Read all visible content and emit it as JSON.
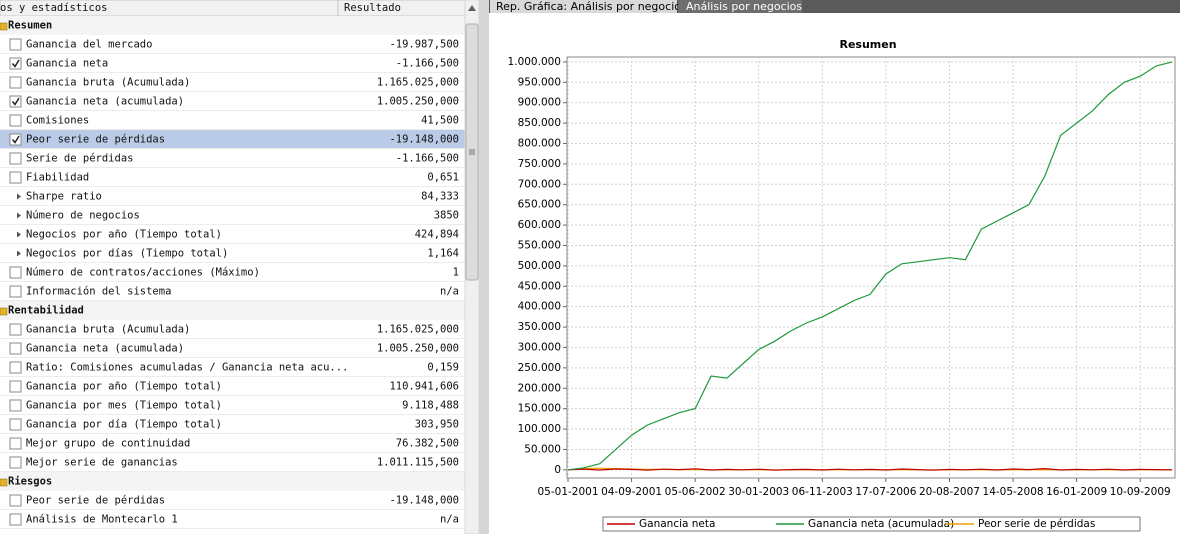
{
  "left_panel": {
    "columns": [
      "os y estadísticos",
      "Resultado"
    ],
    "sections": [
      {
        "title": "Resumen",
        "rows": [
          {
            "label": "Ganancia del mercado",
            "value": "-19.987,500",
            "control": "checkbox",
            "checked": false
          },
          {
            "label": "Ganancia neta",
            "value": "-1.166,500",
            "control": "checkbox",
            "checked": true
          },
          {
            "label": "Ganancia bruta (Acumulada)",
            "value": "1.165.025,000",
            "control": "checkbox",
            "checked": false
          },
          {
            "label": "Ganancia neta (acumulada)",
            "value": "1.005.250,000",
            "control": "checkbox",
            "checked": true
          },
          {
            "label": "Comisiones",
            "value": "41,500",
            "control": "checkbox",
            "checked": false
          },
          {
            "label": "Peor serie de pérdidas",
            "value": "-19.148,000",
            "control": "checkbox",
            "checked": true,
            "selected": true
          },
          {
            "label": "Serie de pérdidas",
            "value": "-1.166,500",
            "control": "checkbox",
            "checked": false
          },
          {
            "label": "Fiabilidad",
            "value": "0,651",
            "control": "checkbox",
            "checked": false
          },
          {
            "label": "Sharpe ratio",
            "value": "84,333",
            "control": "expander"
          },
          {
            "label": "Número de negocios",
            "value": "3850",
            "control": "expander"
          },
          {
            "label": "Negocios por año (Tiempo total)",
            "value": "424,894",
            "control": "expander"
          },
          {
            "label": "Negocios por días (Tiempo total)",
            "value": "1,164",
            "control": "expander"
          },
          {
            "label": "Número de contratos/acciones (Máximo)",
            "value": "1",
            "control": "checkbox",
            "checked": false
          },
          {
            "label": "Información del sistema",
            "value": "n/a",
            "control": "checkbox",
            "checked": false
          }
        ]
      },
      {
        "title": "Rentabilidad",
        "rows": [
          {
            "label": "Ganancia bruta (Acumulada)",
            "value": "1.165.025,000",
            "control": "checkbox",
            "checked": false
          },
          {
            "label": "Ganancia neta (acumulada)",
            "value": "1.005.250,000",
            "control": "checkbox",
            "checked": false
          },
          {
            "label": "Ratio: Comisiones acumuladas / Ganancia neta acu...",
            "value": "0,159",
            "control": "checkbox",
            "checked": false
          },
          {
            "label": "Ganancia por año (Tiempo total)",
            "value": "110.941,606",
            "control": "checkbox",
            "checked": false
          },
          {
            "label": "Ganancia por mes (Tiempo total)",
            "value": "9.118,488",
            "control": "checkbox",
            "checked": false
          },
          {
            "label": "Ganancia por día (Tiempo total)",
            "value": "303,950",
            "control": "checkbox",
            "checked": false
          },
          {
            "label": "Mejor grupo de continuidad",
            "value": "76.382,500",
            "control": "checkbox",
            "checked": false
          },
          {
            "label": "Mejor serie de ganancias",
            "value": "1.011.115,500",
            "control": "checkbox",
            "checked": false
          }
        ]
      },
      {
        "title": "Riesgos",
        "rows": [
          {
            "label": "Peor serie de pérdidas",
            "value": "-19.148,000",
            "control": "checkbox",
            "checked": false
          },
          {
            "label": "Análisis de Montecarlo 1",
            "value": "n/a",
            "control": "checkbox",
            "checked": false
          }
        ]
      }
    ]
  },
  "tabs": [
    "Rep. Gráfica: Análisis por negocios",
    "Análisis por negocios"
  ],
  "chart_data": {
    "type": "line",
    "title": "Resumen",
    "categories": [
      "05-01-2001",
      null,
      null,
      null,
      "04-09-2001",
      null,
      null,
      null,
      "05-06-2002",
      null,
      null,
      null,
      "30-01-2003",
      null,
      null,
      null,
      "06-11-2003",
      null,
      null,
      null,
      "17-07-2006",
      null,
      null,
      null,
      "20-08-2007",
      null,
      null,
      null,
      "14-05-2008",
      null,
      null,
      null,
      "16-01-2009",
      null,
      null,
      null,
      "10-09-2009",
      null,
      null
    ],
    "series": [
      {
        "name": "Ganancia neta",
        "color": "#c00000",
        "values": [
          0,
          1500,
          -500,
          2000,
          1000,
          -1000,
          1500,
          500,
          2500,
          -500,
          1000,
          0,
          1500,
          -1000,
          500,
          1000,
          -500,
          1500,
          0,
          1000,
          -500,
          2000,
          500,
          -1000,
          1000,
          0,
          1500,
          -500,
          2000,
          500,
          3000,
          -500,
          1000,
          0,
          1500,
          -500,
          1000,
          500,
          0
        ]
      },
      {
        "name": "Ganancia neta (acumulada)",
        "color": "#1e9a3c",
        "values": [
          0,
          5000,
          15000,
          50000,
          85000,
          110000,
          125000,
          140000,
          150000,
          230000,
          225000,
          260000,
          295000,
          315000,
          340000,
          360000,
          375000,
          395000,
          415000,
          430000,
          480000,
          505000,
          510000,
          515000,
          520000,
          515000,
          590000,
          610000,
          630000,
          650000,
          720000,
          820000,
          850000,
          880000,
          920000,
          950000,
          965000,
          990000,
          1000000
        ]
      },
      {
        "name": "Peor serie de pérdidas",
        "color": "#e8a000",
        "values": [
          0,
          3000,
          4000,
          3000,
          2000,
          1000,
          1000,
          500,
          500,
          0,
          0,
          0,
          0,
          0,
          0,
          0,
          0,
          0,
          0,
          0,
          0,
          0,
          0,
          0,
          0,
          0,
          0,
          0,
          0,
          0,
          0,
          0,
          0,
          0,
          0,
          0,
          0,
          0,
          0
        ]
      }
    ],
    "ylim": [
      -20000,
      1012000
    ],
    "yticks": [
      0,
      {
        "value": 50000,
        "label": "50.000"
      },
      {
        "value": 100000,
        "label": "100.000"
      },
      {
        "value": 150000,
        "label": "150.000"
      },
      {
        "value": 200000,
        "label": "200.000"
      },
      {
        "value": 250000,
        "label": "250.000"
      },
      {
        "value": 300000,
        "label": "300.000"
      },
      {
        "value": 350000,
        "label": "350.000"
      },
      {
        "value": 400000,
        "label": "400.000"
      },
      {
        "value": 450000,
        "label": "450.000"
      },
      {
        "value": 500000,
        "label": "500.000"
      },
      {
        "value": 550000,
        "label": "550.000"
      },
      {
        "value": 600000,
        "label": "600.000"
      },
      {
        "value": 650000,
        "label": "650.000"
      },
      {
        "value": 700000,
        "label": "700.000"
      },
      {
        "value": 750000,
        "label": "750.000"
      },
      {
        "value": 800000,
        "label": "800.000"
      },
      {
        "value": 850000,
        "label": "850.000"
      },
      {
        "value": 900000,
        "label": "900.000"
      },
      {
        "value": 950000,
        "label": "950.000"
      },
      {
        "value": 1000000,
        "label": "1.000.000"
      }
    ],
    "grid": true,
    "legend": "bottom"
  }
}
